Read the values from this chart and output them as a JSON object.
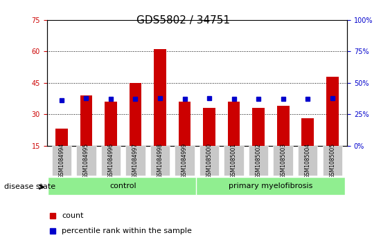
{
  "title": "GDS5802 / 34751",
  "samples": [
    "GSM1084994",
    "GSM1084995",
    "GSM1084996",
    "GSM1084997",
    "GSM1084998",
    "GSM1084999",
    "GSM1085000",
    "GSM1085001",
    "GSM1085002",
    "GSM1085003",
    "GSM1085004",
    "GSM1085005"
  ],
  "counts": [
    23,
    39,
    36,
    45,
    61,
    36,
    33,
    36,
    33,
    34,
    28,
    48
  ],
  "percentile_ranks": [
    36,
    38,
    37,
    37,
    38,
    37,
    38,
    37,
    37,
    37,
    37,
    38
  ],
  "groups": [
    {
      "label": "control",
      "start": 0,
      "end": 6,
      "color": "#90ee90"
    },
    {
      "label": "primary myelofibrosis",
      "start": 6,
      "end": 12,
      "color": "#90ee90"
    }
  ],
  "ylim_left": [
    15,
    75
  ],
  "ylim_right": [
    0,
    100
  ],
  "yticks_left": [
    15,
    30,
    45,
    60,
    75
  ],
  "yticks_right": [
    0,
    25,
    50,
    75,
    100
  ],
  "bar_color": "#cc0000",
  "dot_color": "#0000cc",
  "bar_width": 0.5,
  "grid_color": "#000000",
  "title_fontsize": 11,
  "tick_fontsize": 7,
  "label_fontsize": 8,
  "bg_plot": "#ffffff",
  "bg_xticklabels": "#cccccc",
  "disease_state_label": "disease state",
  "legend_items": [
    {
      "label": "count",
      "color": "#cc0000"
    },
    {
      "label": "percentile rank within the sample",
      "color": "#0000cc"
    }
  ]
}
